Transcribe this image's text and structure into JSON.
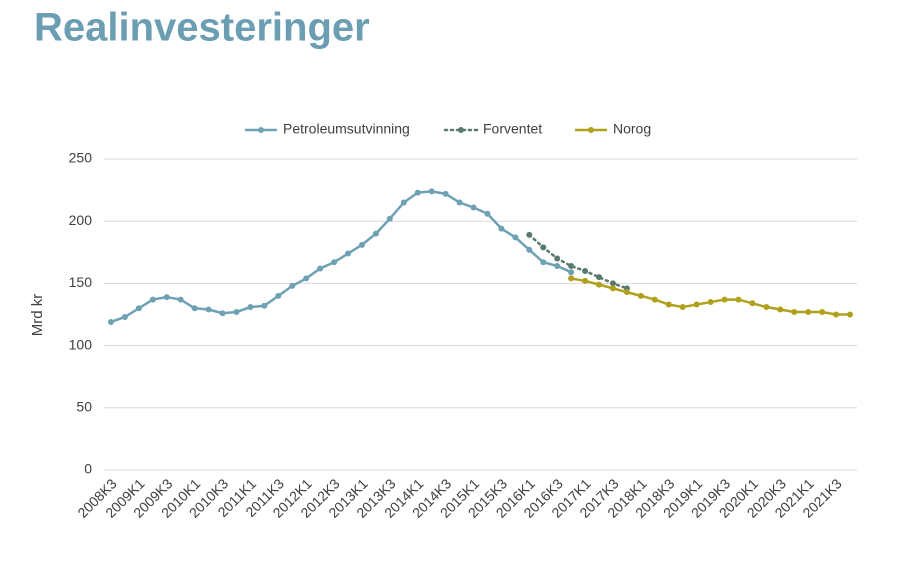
{
  "chart_data": {
    "type": "line",
    "title": "Realinvesteringer",
    "y_label": "Mrd kr",
    "categories": [
      "2008K3",
      null,
      "2009K1",
      null,
      "2009K3",
      null,
      "2010K1",
      null,
      "2010K3",
      null,
      "2011K1",
      null,
      "2011K3",
      null,
      "2012K1",
      null,
      "2012K3",
      null,
      "2013K1",
      null,
      "2013K3",
      null,
      "2014K1",
      null,
      "2014K3",
      null,
      "2015K1",
      null,
      "2015K3",
      null,
      "2016K1",
      null,
      "2016K3",
      null,
      "2017K1",
      null,
      "2017K3",
      null,
      "2018K1",
      null,
      "2018K3",
      null,
      "2019K1",
      null,
      "2019K3",
      null,
      "2020K1",
      null,
      "2020K3",
      null,
      "2021K1",
      null,
      "2021K3",
      null
    ],
    "series": [
      {
        "name": "Petroleumsutvinning",
        "color": "#6fa1b5",
        "style": "solid",
        "values": [
          119,
          123,
          130,
          137,
          139,
          137,
          130,
          129,
          126,
          127,
          131,
          132,
          140,
          148,
          154,
          162,
          167,
          174,
          181,
          190,
          202,
          215,
          223,
          224,
          222,
          215,
          211,
          206,
          194,
          187,
          177,
          167,
          164,
          159,
          null,
          null,
          null,
          null,
          null,
          null,
          null,
          null,
          null,
          null,
          null,
          null,
          null,
          null,
          null,
          null,
          null,
          null,
          null,
          null
        ]
      },
      {
        "name": "Forventet",
        "color": "#587a6f",
        "style": "dotted",
        "values": [
          null,
          null,
          null,
          null,
          null,
          null,
          null,
          null,
          null,
          null,
          null,
          null,
          null,
          null,
          null,
          null,
          null,
          null,
          null,
          null,
          null,
          null,
          null,
          null,
          null,
          null,
          null,
          null,
          null,
          null,
          189,
          179,
          170,
          164,
          160,
          155,
          150,
          146,
          null,
          null,
          null,
          null,
          null,
          null,
          null,
          null,
          null,
          null,
          null,
          null,
          null,
          null,
          null,
          null
        ]
      },
      {
        "name": "Norog",
        "color": "#b0a11c",
        "style": "solid",
        "values": [
          null,
          null,
          null,
          null,
          null,
          null,
          null,
          null,
          null,
          null,
          null,
          null,
          null,
          null,
          null,
          null,
          null,
          null,
          null,
          null,
          null,
          null,
          null,
          null,
          null,
          null,
          null,
          null,
          null,
          null,
          null,
          null,
          null,
          154,
          152,
          149,
          146,
          143,
          140,
          137,
          133,
          131,
          133,
          135,
          137,
          137,
          134,
          131,
          129,
          127,
          127,
          127,
          125,
          125
        ]
      }
    ],
    "ylim": [
      0,
      250
    ],
    "yticks": [
      0,
      50,
      100,
      150,
      200,
      250
    ],
    "grid": true,
    "legend": "top"
  }
}
